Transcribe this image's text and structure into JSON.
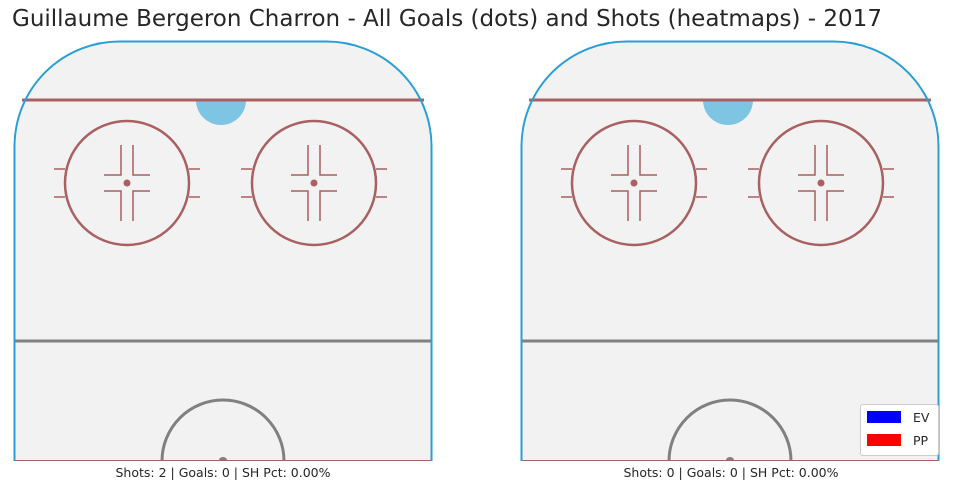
{
  "chart_data": [
    {
      "type": "scatter",
      "title": "Guillaume Bergeron Charron - All Goals (dots) and Shots (heatmaps) - 2017",
      "caption": "Shots: 2 | Goals: 0 | SH Pct: 0.00%",
      "shots": 2,
      "goals": 0,
      "sh_pct": "0.00%",
      "points": []
    },
    {
      "type": "scatter",
      "caption": "Shots: 0 | Goals: 0 | SH Pct: 0.00%",
      "shots": 0,
      "goals": 0,
      "sh_pct": "0.00%",
      "points": [],
      "legend": {
        "placement": "lower-right",
        "entries": [
          {
            "label": "EV",
            "color": "#0000ff"
          },
          {
            "label": "PP",
            "color": "#ff0000"
          }
        ]
      }
    }
  ],
  "colors": {
    "board": "#2a9fd6",
    "goal_line": "#a86060",
    "circle": "#a86060",
    "crease": "#7ec4e3",
    "blue_line": "#808080",
    "ice": "#f2f2f2"
  }
}
